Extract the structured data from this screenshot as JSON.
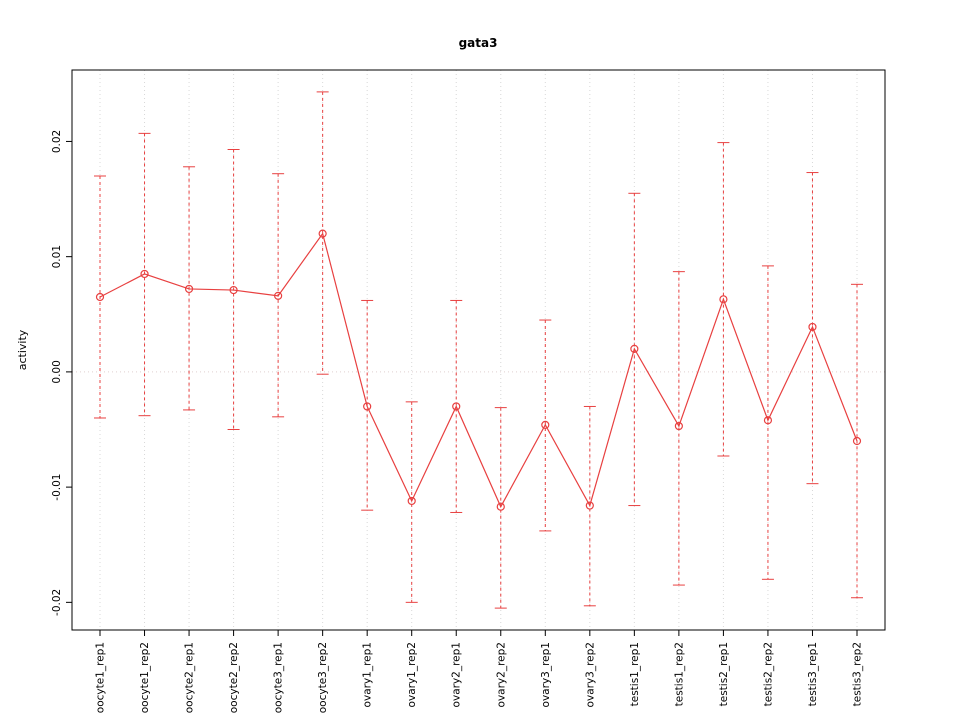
{
  "chart_data": {
    "type": "line",
    "title": "gata3",
    "xlabel": "",
    "ylabel": "activity",
    "ylim": [
      -0.0224,
      0.0262
    ],
    "grid": "dotted-vertical-per-category-and-zero-line",
    "legend": "none",
    "series_color": "#e84040",
    "grid_color": "#d8d8d8",
    "zero_line_color": "#e0d0d0",
    "point_style": "open-circle",
    "error_bar_style": "dashed-with-caps",
    "yticks": [
      -0.02,
      -0.01,
      0.0,
      0.01,
      0.02
    ],
    "ytick_labels": [
      "-0.02",
      "-0.01",
      "0.00",
      "0.01",
      "0.02"
    ],
    "categories": [
      "oocyte1_rep1",
      "oocyte1_rep2",
      "oocyte2_rep1",
      "oocyte2_rep2",
      "oocyte3_rep1",
      "oocyte3_rep2",
      "ovary1_rep1",
      "ovary1_rep2",
      "ovary2_rep1",
      "ovary2_rep2",
      "ovary3_rep1",
      "ovary3_rep2",
      "testis1_rep1",
      "testis1_rep2",
      "testis2_rep1",
      "testis2_rep2",
      "testis3_rep1",
      "testis3_rep2"
    ],
    "values": [
      0.0065,
      0.0085,
      0.0072,
      0.0071,
      0.0066,
      0.012,
      -0.003,
      -0.0112,
      -0.003,
      -0.0117,
      -0.0046,
      -0.0116,
      0.002,
      -0.0047,
      0.0063,
      -0.0042,
      0.0039,
      -0.006
    ],
    "upper": [
      0.017,
      0.0207,
      0.0178,
      0.0193,
      0.0172,
      0.0243,
      0.0062,
      -0.0026,
      0.0062,
      -0.0031,
      0.0045,
      -0.003,
      0.0155,
      0.0087,
      0.0199,
      0.0092,
      0.0173,
      0.0076
    ],
    "lower": [
      -0.004,
      -0.0038,
      -0.0033,
      -0.005,
      -0.0039,
      -0.0002,
      -0.012,
      -0.02,
      -0.0122,
      -0.0205,
      -0.0138,
      -0.0203,
      -0.0116,
      -0.0185,
      -0.0073,
      -0.018,
      -0.0097,
      -0.0196
    ]
  }
}
